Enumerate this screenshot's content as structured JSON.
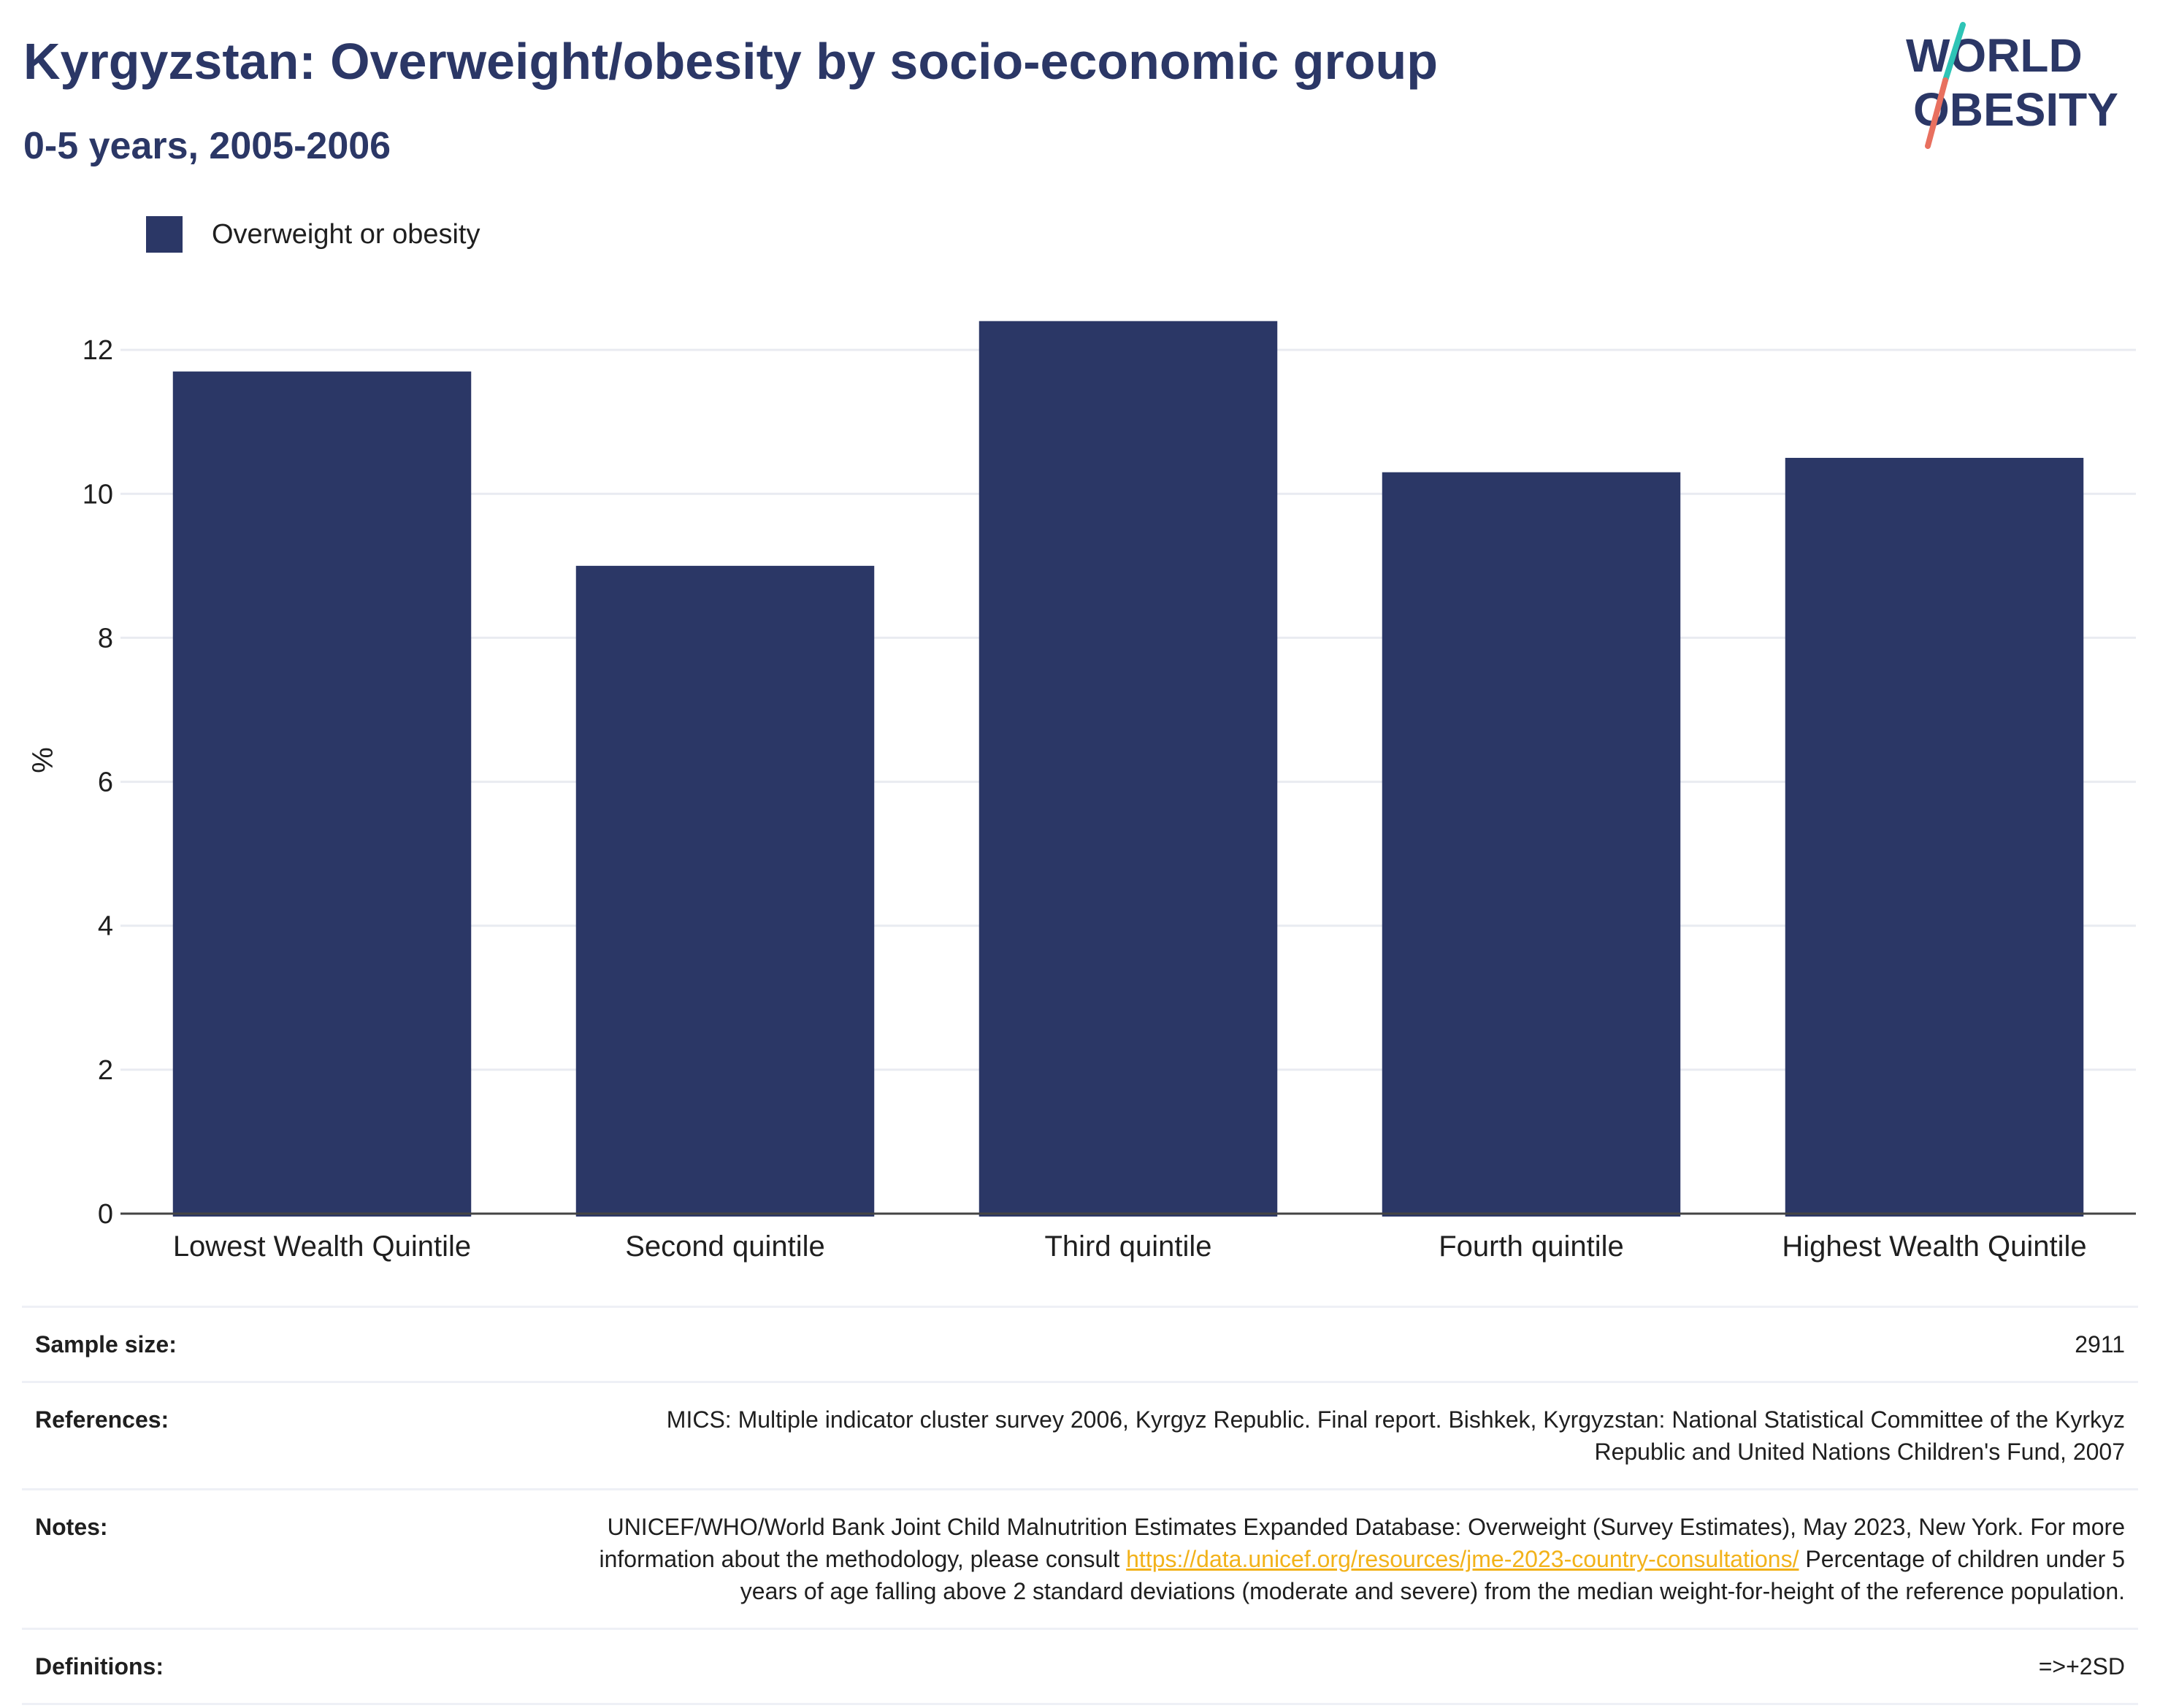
{
  "header": {
    "title": "Kyrgyzstan: Overweight/obesity by socio-economic group",
    "subtitle": "0-5 years, 2005-2006"
  },
  "logo": {
    "line1": "WORLD",
    "line2": "OBESITY"
  },
  "colors": {
    "bar": "#2b3766",
    "title": "#2b3766",
    "link": "#f2b21a",
    "logo_teal": "#2ec4b6",
    "logo_coral": "#e8705f"
  },
  "legend": {
    "items": [
      {
        "label": "Overweight or obesity"
      }
    ]
  },
  "chart_data": {
    "type": "bar",
    "title": "Kyrgyzstan: Overweight/obesity by socio-economic group",
    "subtitle": "0-5 years, 2005-2006",
    "categories": [
      "Lowest Wealth Quintile",
      "Second quintile",
      "Third quintile",
      "Fourth quintile",
      "Highest Wealth Quintile"
    ],
    "series": [
      {
        "name": "Overweight or obesity",
        "values": [
          11.7,
          9.0,
          12.4,
          10.3,
          10.5
        ]
      }
    ],
    "xlabel": "",
    "ylabel": "%",
    "ylim": [
      0,
      12.6
    ],
    "yticks": [
      0,
      2,
      4,
      6,
      8,
      10,
      12
    ],
    "grid": true,
    "legend_position": "top-left"
  },
  "meta": {
    "sample_size": {
      "label": "Sample size:",
      "value": "2911"
    },
    "references": {
      "label": "References:",
      "value": "MICS: Multiple indicator cluster survey 2006, Kyrgyz Republic. Final report. Bishkek, Kyrgyzstan: National Statistical Committee of the Kyrkyz Republic and United Nations Children's Fund, 2007"
    },
    "notes": {
      "label": "Notes:",
      "text_before": "UNICEF/WHO/World Bank Joint Child Malnutrition Estimates Expanded Database: Overweight (Survey Estimates), May 2023, New York. For more information about the methodology, please consult ",
      "link": "https://data.unicef.org/resources/jme-2023-country-consultations/",
      "text_after": " Percentage of children under 5 years of age falling above 2 standard deviations (moderate and severe) from the median weight-for-height of the reference population."
    },
    "definitions": {
      "label": "Definitions:",
      "value": "=>+2SD"
    }
  }
}
